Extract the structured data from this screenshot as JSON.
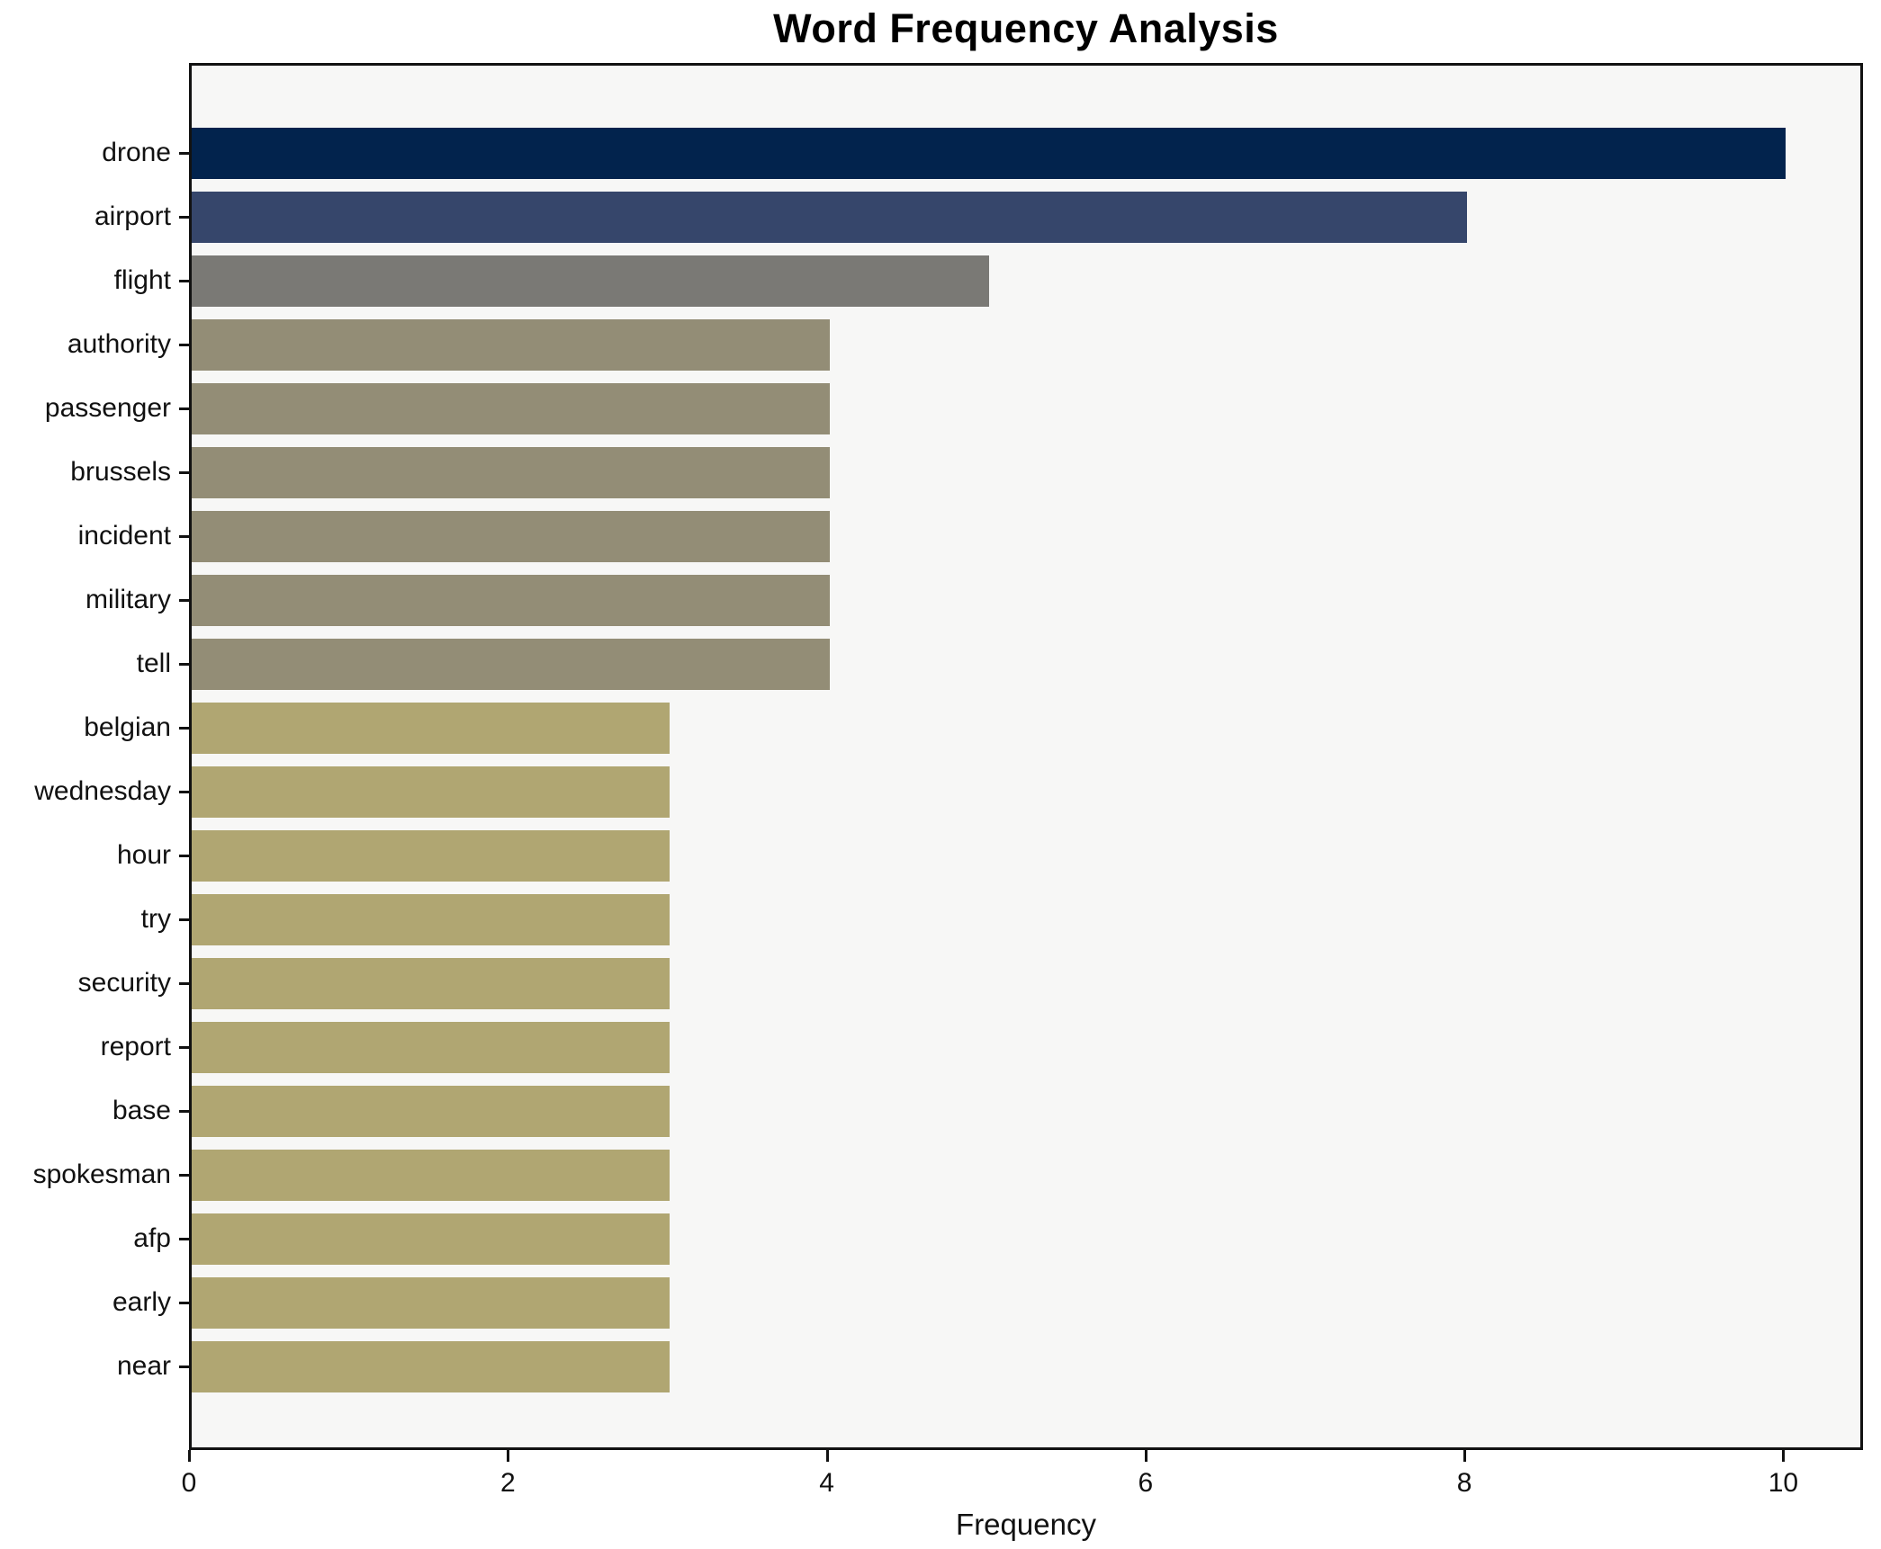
{
  "chart_data": {
    "type": "bar",
    "orientation": "horizontal",
    "title": "Word Frequency Analysis",
    "xlabel": "Frequency",
    "ylabel": "",
    "categories": [
      "drone",
      "airport",
      "flight",
      "authority",
      "passenger",
      "brussels",
      "incident",
      "military",
      "tell",
      "belgian",
      "wednesday",
      "hour",
      "try",
      "security",
      "report",
      "base",
      "spokesman",
      "afp",
      "early",
      "near"
    ],
    "values": [
      10,
      8,
      5,
      4,
      4,
      4,
      4,
      4,
      4,
      3,
      3,
      3,
      3,
      3,
      3,
      3,
      3,
      3,
      3,
      3
    ],
    "bar_colors": [
      "#02234d",
      "#36466b",
      "#7a7975",
      "#938d76",
      "#938d76",
      "#938d76",
      "#938d76",
      "#938d76",
      "#938d76",
      "#b0a672",
      "#b0a672",
      "#b0a672",
      "#b0a672",
      "#b0a672",
      "#b0a672",
      "#b0a672",
      "#b0a672",
      "#b0a672",
      "#b0a672",
      "#b0a672"
    ],
    "xlim": [
      0,
      10.5
    ],
    "xticks": [
      0,
      2,
      4,
      6,
      8,
      10
    ],
    "grid": "off",
    "legend": "none",
    "plot_background": "#f7f7f6",
    "axis_color": "#121212",
    "label_color": "#111111"
  }
}
